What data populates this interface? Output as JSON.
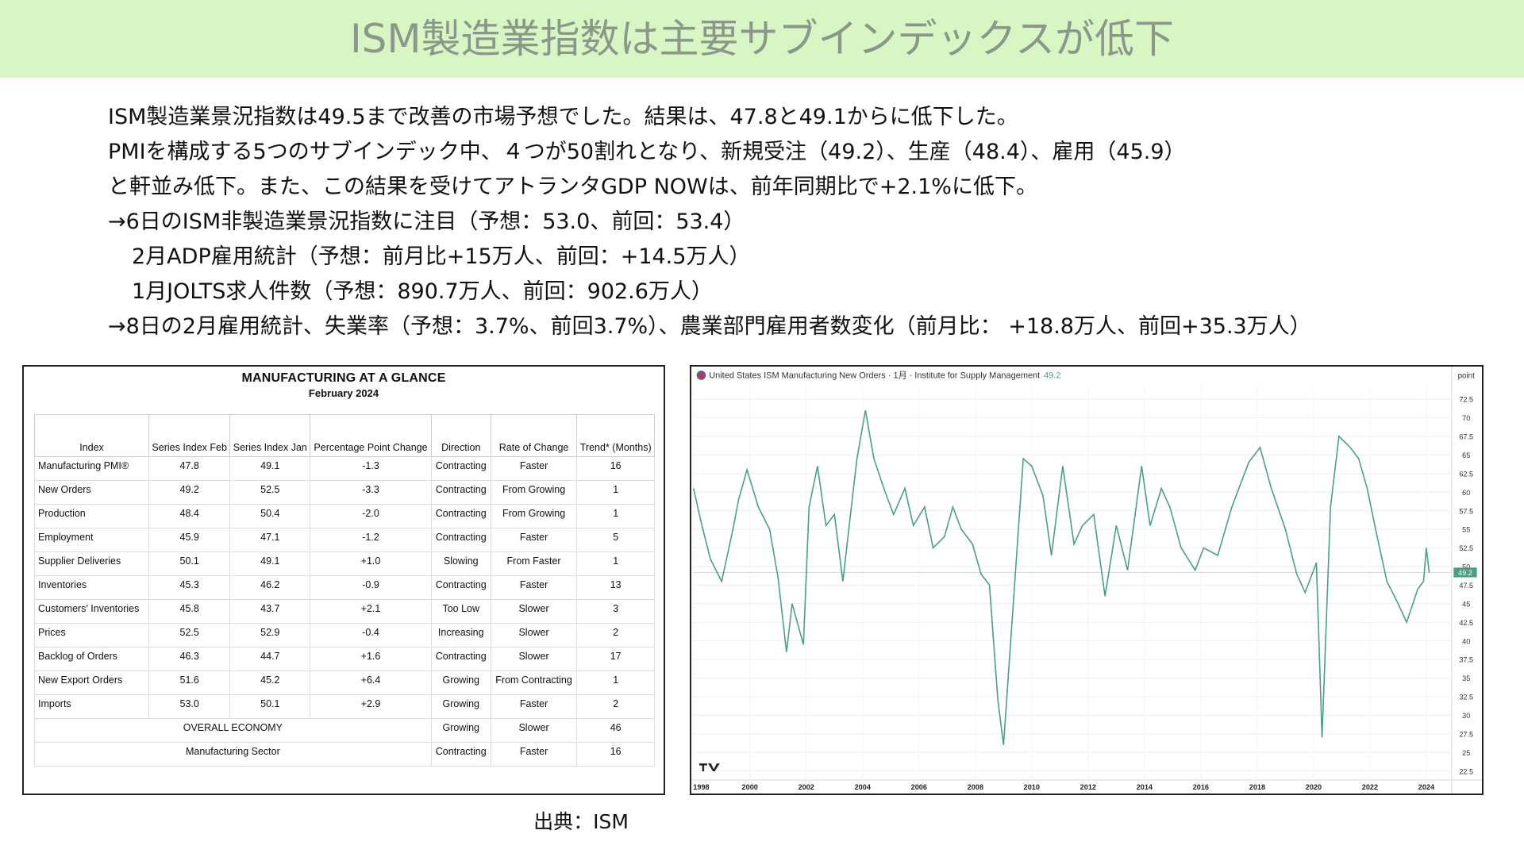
{
  "header": {
    "title": "ISM製造業指数は主要サブインデックスが低下"
  },
  "body": {
    "lines": [
      "ISM製造業景況指数は49.5まで改善の市場予想でした。結果は、47.8と49.1からに低下した。",
      "PMIを構成する5つのサブインデック中、４つが50割れとなり、新規受注（49.2）、生産（48.4）、雇用（45.9）",
      "と軒並み低下。また、この結果を受けてアトランタGDP NOWは、前年同期比で+2.1%に低下。",
      "→6日のISM非製造業景況指数に注目（予想：53.0、前回：53.4）",
      "2月ADP雇用統計（予想：前月比+15万人、前回：+14.5万人）",
      "1月JOLTS求人件数（予想：890.7万人、前回：902.6万人）",
      "→8日の2月雇用統計、失業率（予想：3.7%、前回3.7%）、農業部門雇用者数変化（前月比： +18.8万人、前回+35.3万人）"
    ]
  },
  "table": {
    "title": "MANUFACTURING AT A GLANCE",
    "subtitle": "February 2024",
    "headers": [
      "Index",
      "Series Index Feb",
      "Series Index Jan",
      "Percentage Point Change",
      "Direction",
      "Rate of Change",
      "Trend* (Months)"
    ],
    "rows": [
      [
        "Manufacturing PMI®",
        "47.8",
        "49.1",
        "-1.3",
        "Contracting",
        "Faster",
        "16"
      ],
      [
        "New Orders",
        "49.2",
        "52.5",
        "-3.3",
        "Contracting",
        "From Growing",
        "1"
      ],
      [
        "Production",
        "48.4",
        "50.4",
        "-2.0",
        "Contracting",
        "From Growing",
        "1"
      ],
      [
        "Employment",
        "45.9",
        "47.1",
        "-1.2",
        "Contracting",
        "Faster",
        "5"
      ],
      [
        "Supplier Deliveries",
        "50.1",
        "49.1",
        "+1.0",
        "Slowing",
        "From Faster",
        "1"
      ],
      [
        "Inventories",
        "45.3",
        "46.2",
        "-0.9",
        "Contracting",
        "Faster",
        "13"
      ],
      [
        "Customers’ Inventories",
        "45.8",
        "43.7",
        "+2.1",
        "Too Low",
        "Slower",
        "3"
      ],
      [
        "Prices",
        "52.5",
        "52.9",
        "-0.4",
        "Increasing",
        "Slower",
        "2"
      ],
      [
        "Backlog of Orders",
        "46.3",
        "44.7",
        "+1.6",
        "Contracting",
        "Slower",
        "17"
      ],
      [
        "New Export Orders",
        "51.6",
        "45.2",
        "+6.4",
        "Growing",
        "From Contracting",
        "1"
      ],
      [
        "Imports",
        "53.0",
        "50.1",
        "+2.9",
        "Growing",
        "Faster",
        "2"
      ],
      [
        "OVERALL ECONOMY",
        "Growing",
        "Slower",
        "46"
      ],
      [
        "Manufacturing Sector",
        "Contracting",
        "Faster",
        "16"
      ]
    ]
  },
  "chart_data": {
    "type": "line",
    "title": "United States ISM Manufacturing New Orders · 1月 · Institute for Supply Management",
    "y_unit": "point",
    "color": "#4a9e86",
    "x": [
      1998.0,
      1998.3,
      1998.6,
      1999.0,
      1999.4,
      1999.6,
      1999.9,
      2000.3,
      2000.7,
      2001.0,
      2001.3,
      2001.5,
      2001.9,
      2002.1,
      2002.4,
      2002.7,
      2003.0,
      2003.3,
      2003.6,
      2003.8,
      2004.1,
      2004.4,
      2004.8,
      2005.1,
      2005.5,
      2005.8,
      2006.2,
      2006.5,
      2006.9,
      2007.2,
      2007.5,
      2007.9,
      2008.2,
      2008.5,
      2008.8,
      2009.0,
      2009.3,
      2009.7,
      2010.0,
      2010.4,
      2010.7,
      2011.1,
      2011.5,
      2011.8,
      2012.2,
      2012.6,
      2013.0,
      2013.4,
      2013.9,
      2014.2,
      2014.6,
      2014.9,
      2015.3,
      2015.8,
      2016.1,
      2016.6,
      2017.1,
      2017.7,
      2018.1,
      2018.5,
      2019.0,
      2019.4,
      2019.7,
      2020.1,
      2020.3,
      2020.6,
      2020.9,
      2021.3,
      2021.6,
      2021.9,
      2022.2,
      2022.6,
      2023.0,
      2023.3,
      2023.7,
      2023.9,
      2024.0,
      2024.1
    ],
    "values": [
      60.5,
      55.5,
      51,
      48,
      55,
      59,
      63,
      58,
      55,
      48.5,
      38.5,
      45,
      39.5,
      58,
      63.5,
      55.5,
      57,
      48,
      58,
      64.5,
      71,
      64.5,
      60,
      57,
      60.5,
      55.5,
      58,
      52.5,
      54,
      58,
      55,
      53,
      49,
      47.5,
      32,
      26,
      42.5,
      64.5,
      63.5,
      59.5,
      51.5,
      63.5,
      53,
      55.5,
      57,
      46,
      55.5,
      49.5,
      63.5,
      55.5,
      60.5,
      58,
      52.5,
      49.5,
      52.5,
      51.5,
      58,
      64,
      66,
      60.5,
      55,
      49,
      46.5,
      50.5,
      27,
      58,
      67.5,
      66,
      64.5,
      60.5,
      55,
      48,
      45,
      42.5,
      47,
      48,
      52.5,
      49.2
    ],
    "xlim": [
      1998,
      2024.9
    ],
    "ylim": [
      21.3,
      74.4
    ],
    "xticks": [
      1998,
      2000,
      2002,
      2004,
      2006,
      2008,
      2010,
      2012,
      2014,
      2016,
      2018,
      2020,
      2022,
      2024
    ],
    "yticks": [
      22.5,
      25,
      27.5,
      30,
      32.5,
      35,
      37.5,
      40,
      42.5,
      45,
      47.5,
      50,
      52.5,
      55,
      57.5,
      60,
      62.5,
      65,
      67.5,
      70,
      72.5
    ],
    "grid": true
  },
  "source": "出典：ISM"
}
